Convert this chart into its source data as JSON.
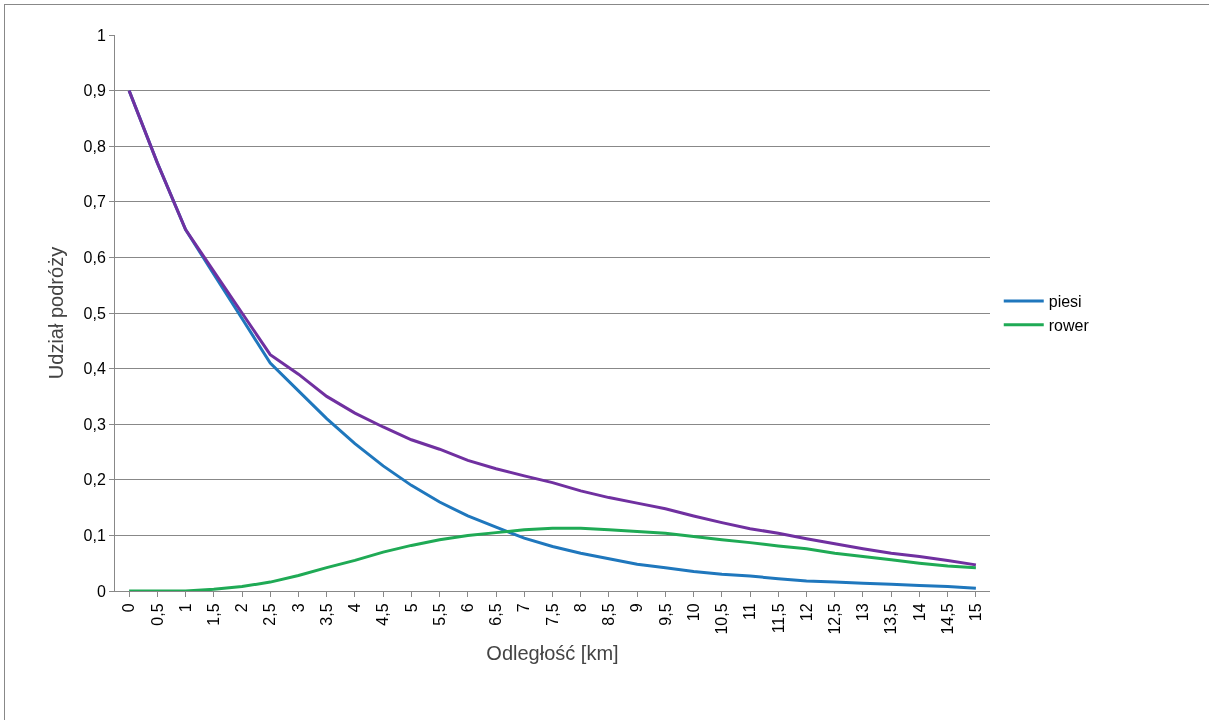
{
  "chart_data": {
    "type": "line",
    "xlabel": "Odległość [km]",
    "ylabel": "Udział podróży",
    "categories": [
      "0",
      "0,5",
      "1",
      "1,5",
      "2",
      "2,5",
      "3",
      "3,5",
      "4",
      "4,5",
      "5",
      "5,5",
      "6",
      "6,5",
      "7",
      "7,5",
      "8",
      "8,5",
      "9",
      "9,5",
      "10",
      "10,5",
      "11",
      "11,5",
      "12",
      "12,5",
      "13",
      "13,5",
      "14",
      "14,5",
      "15"
    ],
    "series": [
      {
        "name": "piesi",
        "color": "#1f77bd",
        "values": [
          0.9,
          0.77,
          0.65,
          0.57,
          0.49,
          0.41,
          0.36,
          0.31,
          0.265,
          0.225,
          0.19,
          0.16,
          0.135,
          0.115,
          0.095,
          0.08,
          0.068,
          0.058,
          0.048,
          0.042,
          0.035,
          0.03,
          0.027,
          0.022,
          0.018,
          0.016,
          0.014,
          0.012,
          0.01,
          0.008,
          0.005
        ]
      },
      {
        "name": "rower",
        "color": "#1faa55",
        "values": [
          0,
          0,
          0,
          0.003,
          0.008,
          0.016,
          0.028,
          0.042,
          0.055,
          0.07,
          0.082,
          0.092,
          0.1,
          0.105,
          0.11,
          0.113,
          0.113,
          0.11,
          0.107,
          0.104,
          0.098,
          0.092,
          0.087,
          0.081,
          0.076,
          0.068,
          0.062,
          0.056,
          0.05,
          0.045,
          0.042
        ]
      },
      {
        "color": "#7030a0",
        "values": [
          0.9,
          0.77,
          0.65,
          0.575,
          0.5,
          0.425,
          0.39,
          0.35,
          0.32,
          0.295,
          0.272,
          0.255,
          0.235,
          0.22,
          0.207,
          0.195,
          0.18,
          0.168,
          0.158,
          0.148,
          0.135,
          0.123,
          0.112,
          0.104,
          0.094,
          0.085,
          0.076,
          0.068,
          0.062,
          0.055,
          0.047
        ]
      }
    ],
    "ylim": [
      0,
      1
    ],
    "yticks": [
      0,
      {
        "value": 0.1,
        "label": "0,1"
      },
      {
        "value": 0.2,
        "label": "0,2"
      },
      {
        "value": 0.3,
        "label": "0,3"
      },
      {
        "value": 0.4,
        "label": "0,4"
      },
      {
        "value": 0.5,
        "label": "0,5"
      },
      {
        "value": 0.6,
        "label": "0,6"
      },
      {
        "value": 0.7,
        "label": "0,7"
      },
      {
        "value": 0.8,
        "label": "0,8"
      },
      {
        "value": 0.9,
        "label": "0,9"
      },
      1
    ],
    "grid": "y",
    "legend": "right",
    "marker": "none",
    "line_style": "solid"
  }
}
